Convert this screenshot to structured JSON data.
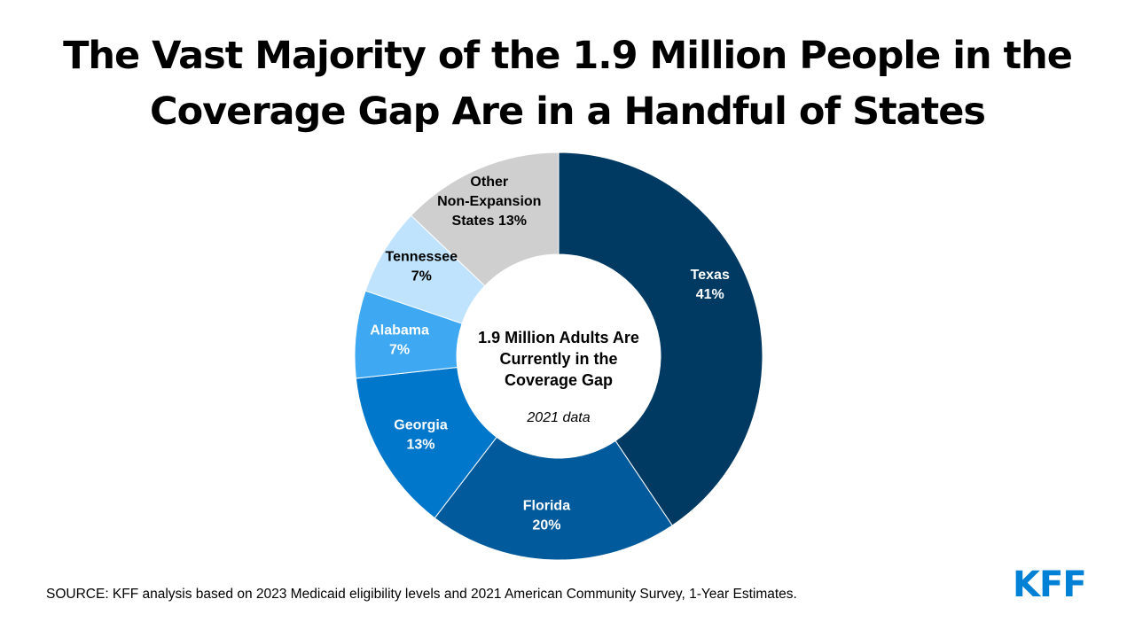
{
  "title": {
    "line1": "The Vast Majority of the 1.9 Million People in the",
    "line2": "Coverage Gap Are in a Handful of States"
  },
  "chart_data": {
    "type": "pie",
    "variant": "donut",
    "title": "The Vast Majority of the 1.9 Million People in the Coverage Gap Are in a Handful of States",
    "unit": "%",
    "slices": [
      {
        "name": "Texas",
        "value": 41,
        "color": "#003a63",
        "label_lines": [
          "Texas",
          "41%"
        ],
        "label_color": "#ffffff"
      },
      {
        "name": "Florida",
        "value": 20,
        "color": "#005a9b",
        "label_lines": [
          "Florida",
          "20%"
        ],
        "label_color": "#ffffff"
      },
      {
        "name": "Georgia",
        "value": 13,
        "color": "#0077cb",
        "label_lines": [
          "Georgia",
          "13%"
        ],
        "label_color": "#ffffff"
      },
      {
        "name": "Alabama",
        "value": 7,
        "color": "#3ea8f2",
        "label_lines": [
          "Alabama",
          "7%"
        ],
        "label_color": "#ffffff"
      },
      {
        "name": "Tennessee",
        "value": 7,
        "color": "#bfe3fd",
        "label_lines": [
          "Tennessee",
          "7%"
        ],
        "label_color": "#000000"
      },
      {
        "name": "Other Non-Expansion States",
        "value": 13,
        "color": "#cfcfcf",
        "label_lines": [
          "Other",
          "Non-Expansion",
          "States 13%"
        ],
        "label_color": "#000000"
      }
    ],
    "center_text": [
      "1.9 Million Adults Are",
      "Currently in the",
      "Coverage Gap"
    ],
    "center_subtext": "2021 data"
  },
  "footer": {
    "source": "SOURCE: KFF analysis based on 2023 Medicaid eligibility levels and 2021 American Community Survey, 1-Year Estimates.",
    "logo_text": "KFF",
    "logo_color": "#0081d6"
  }
}
